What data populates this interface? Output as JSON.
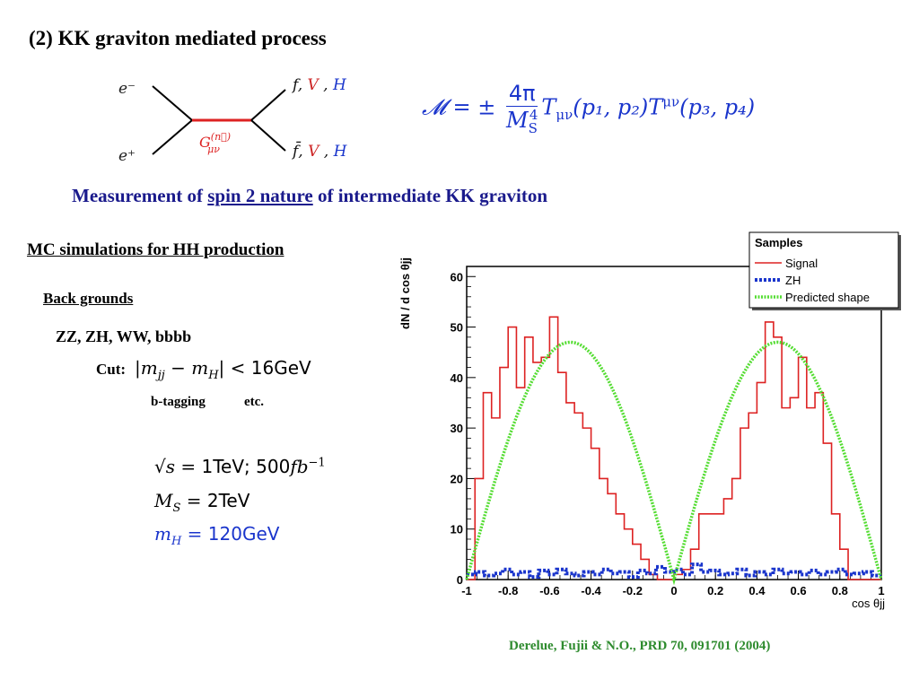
{
  "title": "(2)  KK graviton mediated process",
  "feynman": {
    "e_minus": "e⁻",
    "e_plus": "e⁺",
    "graviton": "G",
    "graviton_sup": "(n⃗)",
    "graviton_sub": "μν",
    "out_top": [
      {
        "text": "f",
        "color": "#111111"
      },
      {
        "text": ", ",
        "color": "#111111"
      },
      {
        "text": "V",
        "color": "#cc2222"
      },
      {
        "text": " , ",
        "color": "#111111"
      },
      {
        "text": "H",
        "color": "#1a35cc"
      }
    ],
    "out_bottom": [
      {
        "text": "f̄",
        "color": "#111111"
      },
      {
        "text": ", ",
        "color": "#111111"
      },
      {
        "text": "V",
        "color": "#cc2222"
      },
      {
        "text": " , ",
        "color": "#111111"
      },
      {
        "text": "H",
        "color": "#1a35cc"
      }
    ]
  },
  "formula": {
    "lhs": "𝓜 = ±",
    "numerator": "4π",
    "denominator": "M",
    "den_sub": "S",
    "den_sup": "4",
    "t1": "T",
    "t1_sub": "μν",
    "args1": "(p₁, p₂)",
    "t2": "T",
    "t2_sup": "μν",
    "args2": "(p₃, p₄)"
  },
  "subtitle": {
    "pre": "Measurement of ",
    "underline": "spin 2 nature",
    "post": " of intermediate KK graviton"
  },
  "mc_heading": "MC simulations for HH production",
  "backgrounds": {
    "heading": "Back grounds",
    "list": "ZZ, ZH, WW, bbbb",
    "cut_label": "Cut:",
    "cut_math": "|m",
    "cut_math_sub1": "jj",
    "cut_math_mid": " − m",
    "cut_math_sub2": "H",
    "cut_math_end": "| < ",
    "cut_value": "16GeV",
    "btag": "b-tagging",
    "etc": "etc."
  },
  "params": [
    {
      "lhs": "√s",
      "rhs": " = ",
      "val": "1TeV;  500",
      "extra": "fb",
      "sup": "−1",
      "color": "#111111"
    },
    {
      "lhs": "M",
      "sub": "S",
      "rhs": " = ",
      "val": "2TeV",
      "color": "#111111"
    },
    {
      "lhs": "m",
      "sub": "H",
      "rhs": " = ",
      "val": "120GeV",
      "color": "#1a35cc"
    }
  ],
  "reference": "Derelue, Fujii & N.O., PRD 70, 091701 (2004)",
  "chart_data": {
    "type": "histogram",
    "ylabel": "dN / d cos θjj",
    "xlabel": "cos θjj",
    "xlim": [
      -1,
      1
    ],
    "ylim": [
      0,
      62
    ],
    "xticks": [
      -1,
      -0.8,
      -0.6,
      -0.4,
      -0.2,
      0,
      0.2,
      0.4,
      0.6,
      0.8,
      1
    ],
    "yticks": [
      0,
      10,
      20,
      30,
      40,
      50,
      60
    ],
    "legend_title": "Samples",
    "legend_position": "top-right",
    "series": [
      {
        "name": "Signal",
        "color": "#dd2222",
        "style": "step",
        "bin_width": 0.04,
        "x_start": -1,
        "values": [
          0,
          20,
          37,
          32,
          42,
          50,
          38,
          48,
          43,
          44,
          52,
          41,
          35,
          33,
          30,
          26,
          20,
          17,
          13,
          10,
          7,
          4,
          1,
          0,
          0,
          1,
          2,
          6,
          13,
          13,
          13,
          16,
          20,
          30,
          33,
          39,
          51,
          48,
          34,
          36,
          44,
          34,
          37,
          27,
          13,
          6,
          0
        ]
      },
      {
        "name": "ZH",
        "color": "#1a35cc",
        "style": "dashed",
        "values": [
          1,
          1.5,
          0.8,
          1.2,
          2,
          1,
          1.5,
          0.5,
          1.8,
          1,
          2,
          1.2,
          0.8,
          1.5,
          1,
          2,
          1.2,
          1.5,
          0.5,
          1.8,
          1.2,
          2.5,
          1.5,
          2,
          1,
          3,
          1.5,
          1.8,
          1,
          1.2,
          2,
          0.8,
          1.5,
          1,
          2,
          1.2,
          1.5,
          1,
          1.8,
          1,
          1.5,
          2,
          1,
          1.2,
          1.5,
          0.8
        ]
      },
      {
        "name": "Predicted shape",
        "color": "#55dd33",
        "style": "dotted",
        "function": "quartic",
        "peak": 47
      }
    ]
  }
}
